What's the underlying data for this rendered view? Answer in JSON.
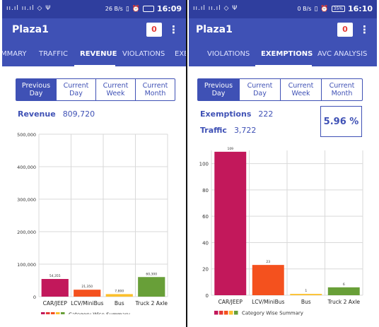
{
  "left": {
    "status": {
      "signal": "ıı.ıl ıı.ıl ◇ Ψ",
      "speed": "26 B/s",
      "battery": "",
      "time": "16:09"
    },
    "app_title": "Plaza1",
    "badge": "0",
    "tabs": [
      {
        "label": "MMARY",
        "active": false
      },
      {
        "label": "TRAFFIC",
        "active": false
      },
      {
        "label": "REVENUE",
        "active": true
      },
      {
        "label": "VIOLATIONS",
        "active": false
      },
      {
        "label": "EXE",
        "active": false
      }
    ],
    "periods": [
      {
        "line1": "Previous",
        "line2": "Day",
        "selected": true
      },
      {
        "line1": "Current",
        "line2": "Day",
        "selected": false
      },
      {
        "line1": "Current",
        "line2": "Week",
        "selected": false
      },
      {
        "line1": "Current",
        "line2": "Month",
        "selected": false
      }
    ],
    "revenue_label": "Revenue",
    "revenue_value": "809,720",
    "chart_data": {
      "type": "bar",
      "categories": [
        "CAR/JEEP",
        "LCV/MiniBus",
        "Bus",
        "Truck 2 Axle"
      ],
      "values": [
        54355,
        21350,
        7800,
        60300
      ],
      "value_labels": [
        "54,355",
        "21,350",
        "7,800",
        "60,300"
      ],
      "colors": [
        "#c2185b",
        "#f4511e",
        "#fbc02d",
        "#689f38"
      ],
      "ylim": [
        0,
        500000
      ],
      "yticks": [
        "0",
        "100,000",
        "200,000",
        "300,000",
        "400,000",
        "500,000"
      ],
      "legend": "Category Wise Summary",
      "legend_colors": [
        "#c2185b",
        "#e53935",
        "#f4511e",
        "#fbc02d",
        "#689f38"
      ],
      "grid": true
    }
  },
  "right": {
    "status": {
      "signal": "ıı.ıl ıı.ıl ◇ Ψ",
      "speed": "0 B/s",
      "battery": "35%",
      "time": "16:10"
    },
    "app_title": "Plaza1",
    "badge": "0",
    "tabs": [
      {
        "label": "VIOLATIONS",
        "active": false
      },
      {
        "label": "EXEMPTIONS",
        "active": true
      },
      {
        "label": "AVC ANALYSIS",
        "active": false
      }
    ],
    "periods": [
      {
        "line1": "Previous",
        "line2": "Day",
        "selected": true
      },
      {
        "line1": "Current",
        "line2": "Day",
        "selected": false
      },
      {
        "line1": "Current",
        "line2": "Week",
        "selected": false
      },
      {
        "line1": "Current",
        "line2": "Month",
        "selected": false
      }
    ],
    "exemptions_label": "Exemptions",
    "exemptions_value": "222",
    "traffic_label": "Traffic",
    "traffic_value": "3,722",
    "percent": "5.96 %",
    "chart_data": {
      "type": "bar",
      "categories": [
        "CAR/JEEP",
        "LCV/MiniBus",
        "Bus",
        "Truck 2 Axle"
      ],
      "values": [
        109,
        23,
        1,
        6
      ],
      "value_labels": [
        "109",
        "23",
        "1",
        "6"
      ],
      "colors": [
        "#c2185b",
        "#f4511e",
        "#fbc02d",
        "#689f38"
      ],
      "ylim": [
        0,
        110
      ],
      "yticks": [
        "0",
        "20",
        "40",
        "60",
        "80",
        "100"
      ],
      "legend": "Category Wise Summary",
      "legend_colors": [
        "#c2185b",
        "#e53935",
        "#f4511e",
        "#fbc02d",
        "#689f38"
      ],
      "grid": true
    }
  }
}
